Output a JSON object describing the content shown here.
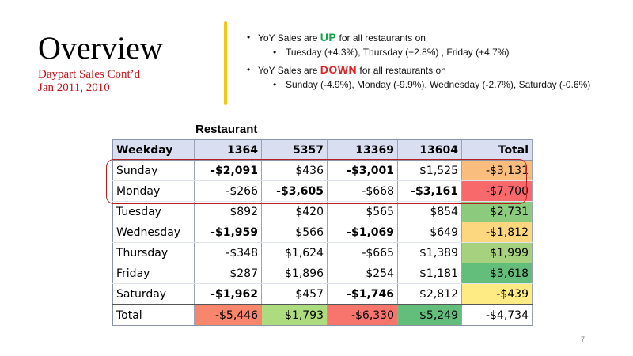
{
  "slide": {
    "title": "Overview",
    "subtitle_line1": "Daypart Sales Cont’d",
    "subtitle_line2": "Jan 2011, 2010",
    "page_number": "7"
  },
  "bullets": {
    "up": {
      "prefix": "YoY Sales are",
      "keyword": "UP",
      "suffix": "for all restaurants on",
      "detail": "Tuesday (+4.3%), Thursday (+2.8%) , Friday (+4.7%)"
    },
    "down": {
      "prefix": "YoY Sales are",
      "keyword": "DOWN",
      "suffix": "for all restaurants on",
      "detail": "Sunday (-4.9%), Monday (-9.9%), Wednesday (-2.7%), Saturday (-0.6%)"
    }
  },
  "table": {
    "group_label": "Restaurant",
    "headers": [
      "Weekday",
      "1364",
      "5357",
      "13369",
      "13604",
      "Total"
    ],
    "rows": [
      {
        "day": "Sunday",
        "values": [
          "-$2,091",
          "$436",
          "-$3,001",
          "$1,525",
          "-$3,131"
        ],
        "bold": [
          true,
          false,
          true,
          false,
          false
        ],
        "total_color": "#f9bd7e"
      },
      {
        "day": "Monday",
        "values": [
          "-$266",
          "-$3,605",
          "-$668",
          "-$3,161",
          "-$7,700"
        ],
        "bold": [
          false,
          true,
          false,
          true,
          false
        ],
        "total_color": "#f8696b"
      },
      {
        "day": "Tuesday",
        "values": [
          "$892",
          "$420",
          "$565",
          "$854",
          "$2,731"
        ],
        "bold": [
          false,
          false,
          false,
          false,
          false
        ],
        "total_color": "#8ccb7e"
      },
      {
        "day": "Wednesday",
        "values": [
          "-$1,959",
          "$566",
          "-$1,069",
          "$649",
          "-$1,812"
        ],
        "bold": [
          true,
          false,
          true,
          false,
          false
        ],
        "total_color": "#fdd680"
      },
      {
        "day": "Thursday",
        "values": [
          "-$348",
          "$1,624",
          "-$665",
          "$1,389",
          "$1,999"
        ],
        "bold": [
          false,
          false,
          false,
          false,
          false
        ],
        "total_color": "#a6d27f"
      },
      {
        "day": "Friday",
        "values": [
          "$287",
          "$1,896",
          "$254",
          "$1,181",
          "$3,618"
        ],
        "bold": [
          false,
          false,
          false,
          false,
          false
        ],
        "total_color": "#63be7b"
      },
      {
        "day": "Saturday",
        "values": [
          "-$1,962",
          "$457",
          "-$1,746",
          "$2,812",
          "-$439"
        ],
        "bold": [
          true,
          false,
          true,
          false,
          false
        ],
        "total_color": "#ffeb84"
      }
    ],
    "total_row": {
      "label": "Total",
      "values": [
        "-$5,446",
        "$1,793",
        "-$6,330",
        "$5,249",
        "-$4,734"
      ],
      "colors": [
        "#f8866d",
        "#addc7e",
        "#f8756d",
        "#63be7b",
        "#ffffff"
      ]
    }
  }
}
